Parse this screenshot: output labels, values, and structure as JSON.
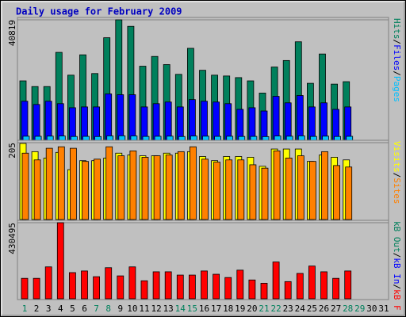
{
  "chart_data": [
    {
      "type": "bar",
      "title": "Daily usage for February 2009",
      "categories": [
        "1",
        "2",
        "3",
        "4",
        "5",
        "6",
        "7",
        "8",
        "9",
        "10",
        "11",
        "12",
        "13",
        "14",
        "15",
        "16",
        "17",
        "18",
        "19",
        "20",
        "21",
        "22",
        "23",
        "24",
        "25",
        "26",
        "27",
        "28",
        "29",
        "30",
        "31"
      ],
      "series": [
        {
          "name": "Hits",
          "color": "#00805c",
          "values": [
            20134,
            18203,
            18203,
            29787,
            22064,
            28959,
            22616,
            34751,
            40819,
            38613,
            25098,
            28408,
            25650,
            22340,
            31166,
            23719,
            22064,
            21788,
            21237,
            20134,
            15997,
            24822,
            27029,
            33373,
            19306,
            29235,
            19030,
            19858,
            null,
            null,
            null
          ]
        },
        {
          "name": "Files",
          "color": "#0000ff",
          "values": [
            13238,
            12135,
            13238,
            12411,
            11032,
            11308,
            11308,
            15720,
            15445,
            15445,
            11308,
            12411,
            12962,
            11308,
            13790,
            13238,
            12962,
            12411,
            10480,
            11032,
            9929,
            14893,
            12687,
            15169,
            11308,
            12687,
            10480,
            11308,
            null,
            null,
            null
          ]
        },
        {
          "name": "Pages",
          "color": "#00c0ff",
          "values": [
            1380,
            1350,
            1410,
            1460,
            1290,
            1330,
            1270,
            1490,
            1520,
            1470,
            1310,
            1360,
            1400,
            1280,
            1440,
            1390,
            1330,
            1370,
            1300,
            1320,
            1250,
            1450,
            1380,
            1500,
            1310,
            1400,
            1290,
            1340,
            null,
            null,
            null
          ]
        }
      ],
      "ylim": [
        0,
        40819
      ],
      "yticks": [
        40819
      ],
      "legend_separator": "/"
    },
    {
      "type": "bar",
      "categories": [
        "1",
        "2",
        "3",
        "4",
        "5",
        "6",
        "7",
        "8",
        "9",
        "10",
        "11",
        "12",
        "13",
        "14",
        "15",
        "16",
        "17",
        "18",
        "19",
        "20",
        "21",
        "22",
        "23",
        "24",
        "25",
        "26",
        "27",
        "28",
        "29",
        "30",
        "31"
      ],
      "series": [
        {
          "name": "Visits",
          "color": "#ffff00",
          "values": [
            203,
            181,
            164,
            179,
            133,
            157,
            157,
            164,
            177,
            172,
            170,
            170,
            177,
            177,
            181,
            168,
            157,
            168,
            168,
            166,
            142,
            188,
            188,
            188,
            155,
            172,
            166,
            159,
            null,
            null,
            null
          ]
        },
        {
          "name": "Sites",
          "color": "#ff8000",
          "values": [
            177,
            159,
            190,
            194,
            190,
            155,
            161,
            194,
            170,
            183,
            166,
            170,
            172,
            181,
            194,
            161,
            153,
            159,
            159,
            146,
            137,
            183,
            164,
            170,
            155,
            181,
            144,
            140,
            null,
            null,
            null
          ]
        }
      ],
      "ylim": [
        0,
        205
      ],
      "yticks": [
        205
      ],
      "legend_separator": "/"
    },
    {
      "type": "bar",
      "categories": [
        "1",
        "2",
        "3",
        "4",
        "5",
        "6",
        "7",
        "8",
        "9",
        "10",
        "11",
        "12",
        "13",
        "14",
        "15",
        "16",
        "17",
        "18",
        "19",
        "20",
        "21",
        "22",
        "23",
        "24",
        "25",
        "26",
        "27",
        "28",
        "29",
        "30",
        "31"
      ],
      "series": [
        {
          "name": "kB Out",
          "color": "#00805c",
          "values": [
            null,
            null,
            null,
            null,
            null,
            null,
            null,
            null,
            null,
            null,
            null,
            null,
            null,
            null,
            null,
            null,
            null,
            null,
            null,
            null,
            null,
            null,
            null,
            null,
            null,
            null,
            null,
            null,
            null,
            null,
            null
          ]
        },
        {
          "name": "kB In",
          "color": "#0000ff",
          "values": [
            null,
            null,
            null,
            null,
            null,
            null,
            null,
            null,
            null,
            null,
            null,
            null,
            null,
            null,
            null,
            null,
            null,
            null,
            null,
            null,
            null,
            null,
            null,
            null,
            null,
            null,
            null,
            null,
            null,
            null,
            null
          ]
        },
        {
          "name": "kB F",
          "color": "#ff0000",
          "values": [
            115724,
            115724,
            180530,
            430495,
            148121,
            157384,
            124982,
            175898,
            129610,
            180530,
            101837,
            152752,
            152752,
            134240,
            134240,
            157384,
            138867,
            120353,
            162016,
            106466,
            87950,
            208304,
            97208,
            143494,
            185161,
            152752,
            115724,
            157384,
            null,
            null,
            null
          ]
        }
      ],
      "ylim": [
        0,
        430495
      ],
      "yticks": [
        430495
      ],
      "legend_separator": "/",
      "show_x_labels": true,
      "category_label_colors": [
        "#00805c",
        "#000000",
        "#000000",
        "#000000",
        "#000000",
        "#000000",
        "#00805c",
        "#00805c",
        "#000000",
        "#000000",
        "#000000",
        "#000000",
        "#000000",
        "#00805c",
        "#00805c",
        "#000000",
        "#000000",
        "#000000",
        "#000000",
        "#000000",
        "#00805c",
        "#00805c",
        "#000000",
        "#000000",
        "#000000",
        "#000000",
        "#000000",
        "#00805c",
        "#00805c",
        "#000000",
        "#000000"
      ]
    }
  ]
}
